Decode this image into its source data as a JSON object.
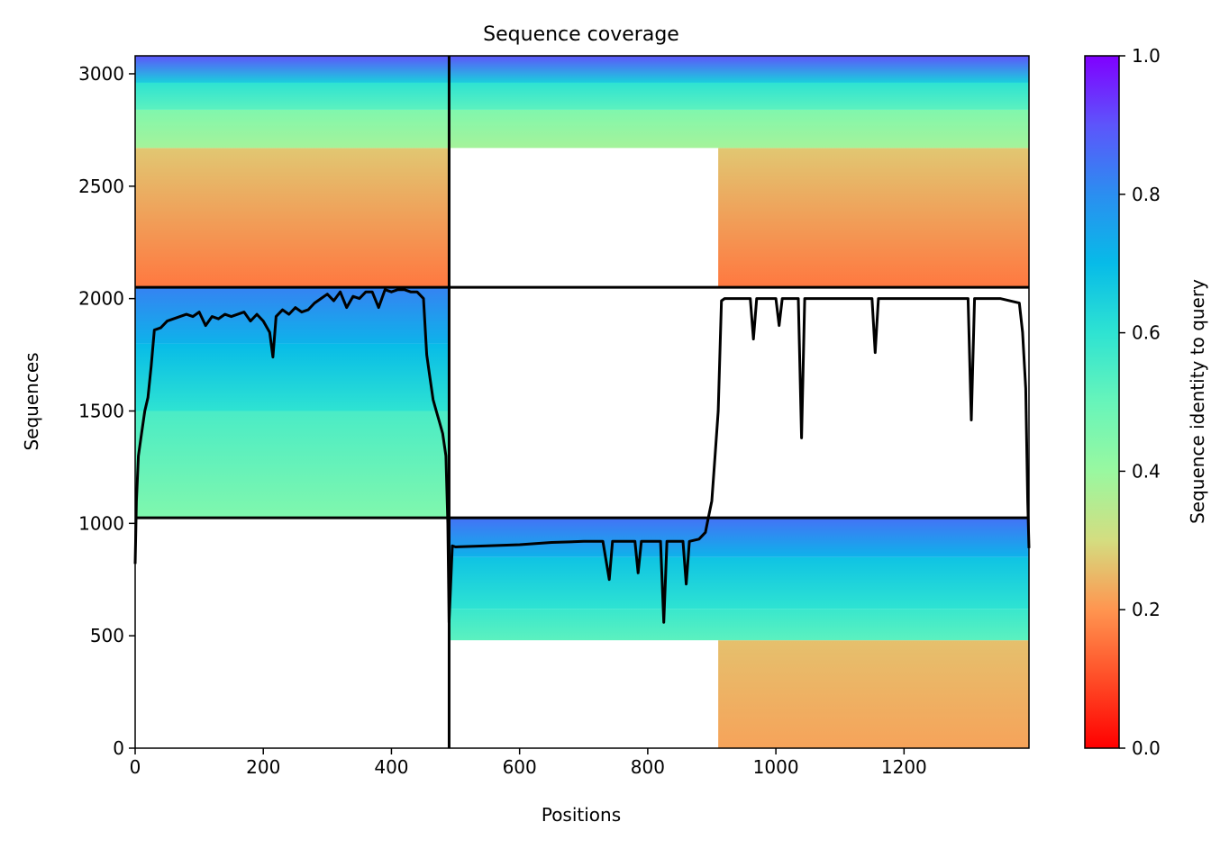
{
  "chart_data": {
    "type": "heatmap",
    "title": "Sequence coverage",
    "xlabel": "Positions",
    "ylabel": "Sequences",
    "xlim": [
      0,
      1395
    ],
    "ylim": [
      0,
      3080
    ],
    "x_ticks": [
      0,
      200,
      400,
      600,
      800,
      1000,
      1200
    ],
    "y_ticks": [
      0,
      500,
      1000,
      1500,
      2000,
      2500,
      3000
    ],
    "colorbar": {
      "label": "Sequence identity to query",
      "range": [
        0,
        1
      ],
      "ticks": [
        "0.0",
        "0.2",
        "0.4",
        "0.6",
        "0.8",
        "1.0"
      ],
      "colormap": "rainbow",
      "stops": [
        {
          "v": 0.0,
          "color": "#ff0000"
        },
        {
          "v": 0.1,
          "color": "#ff4d27"
        },
        {
          "v": 0.2,
          "color": "#ff9550"
        },
        {
          "v": 0.3,
          "color": "#d4dd80"
        },
        {
          "v": 0.4,
          "color": "#99f8a0"
        },
        {
          "v": 0.5,
          "color": "#67f5ba"
        },
        {
          "v": 0.6,
          "color": "#2ee3d2"
        },
        {
          "v": 0.7,
          "color": "#07bbe8"
        },
        {
          "v": 0.8,
          "color": "#2b8ef0"
        },
        {
          "v": 0.9,
          "color": "#5d55fb"
        },
        {
          "v": 1.0,
          "color": "#8000ff"
        }
      ]
    },
    "domain_boundaries_x": [
      490
    ],
    "group_boundaries_y": [
      1025,
      2050
    ],
    "blocks": [
      {
        "name": "group-top-left",
        "x": [
          0,
          490
        ],
        "y": [
          2050,
          3080
        ],
        "identity_bands": [
          {
            "y": [
              2050,
              2670
            ],
            "identity": [
              0.16,
              0.27
            ]
          },
          {
            "y": [
              2670,
              2840
            ],
            "identity": [
              0.38,
              0.45
            ]
          },
          {
            "y": [
              2840,
              2960
            ],
            "identity": [
              0.52,
              0.6
            ]
          },
          {
            "y": [
              2960,
              3080
            ],
            "identity": [
              0.65,
              0.9
            ]
          }
        ]
      },
      {
        "name": "group-top-right",
        "x": [
          490,
          1395
        ],
        "y": [
          2050,
          3080
        ],
        "identity_bands": [
          {
            "y": [
              2050,
              2670
            ],
            "identity": [
              0.16,
              0.27
            ],
            "x_start": 910
          },
          {
            "y": [
              2670,
              2840
            ],
            "identity": [
              0.38,
              0.45
            ]
          },
          {
            "y": [
              2840,
              2960
            ],
            "identity": [
              0.52,
              0.6
            ]
          },
          {
            "y": [
              2960,
              3080
            ],
            "identity": [
              0.65,
              0.9
            ]
          }
        ]
      },
      {
        "name": "group-middle-left",
        "x": [
          0,
          490
        ],
        "y": [
          1025,
          2050
        ],
        "identity_bands": [
          {
            "y": [
              1025,
              1500
            ],
            "identity": [
              0.45,
              0.55
            ]
          },
          {
            "y": [
              1500,
              1800
            ],
            "identity": [
              0.6,
              0.7
            ]
          },
          {
            "y": [
              1800,
              2050
            ],
            "identity": [
              0.72,
              0.82
            ]
          }
        ]
      },
      {
        "name": "group-bottom-right",
        "x": [
          490,
          1395
        ],
        "y": [
          0,
          1025
        ],
        "identity_bands": [
          {
            "y": [
              0,
              480
            ],
            "identity": [
              0.22,
              0.26
            ],
            "x_start": 910
          },
          {
            "y": [
              480,
              620
            ],
            "identity": [
              0.52,
              0.58
            ]
          },
          {
            "y": [
              620,
              850
            ],
            "identity": [
              0.6,
              0.68
            ]
          },
          {
            "y": [
              850,
              1025
            ],
            "identity": [
              0.72,
              0.85
            ]
          }
        ]
      }
    ],
    "coverage_line": {
      "x": [
        0,
        2,
        5,
        10,
        15,
        20,
        25,
        30,
        40,
        50,
        60,
        70,
        80,
        90,
        100,
        110,
        120,
        130,
        140,
        150,
        160,
        170,
        180,
        190,
        200,
        210,
        215,
        220,
        230,
        240,
        250,
        260,
        270,
        280,
        290,
        300,
        310,
        320,
        330,
        340,
        350,
        360,
        370,
        380,
        390,
        400,
        410,
        420,
        430,
        440,
        450,
        455,
        460,
        465,
        470,
        475,
        480,
        485,
        488,
        490,
        495,
        500,
        550,
        600,
        650,
        700,
        730,
        740,
        745,
        750,
        780,
        785,
        790,
        820,
        825,
        830,
        855,
        860,
        865,
        880,
        890,
        895,
        900,
        905,
        910,
        915,
        920,
        960,
        965,
        970,
        1000,
        1005,
        1010,
        1035,
        1040,
        1045,
        1050,
        1100,
        1150,
        1155,
        1160,
        1200,
        1250,
        1300,
        1305,
        1310,
        1350,
        1380,
        1385,
        1390,
        1393,
        1395
      ],
      "y": [
        820,
        1100,
        1300,
        1400,
        1500,
        1560,
        1700,
        1860,
        1870,
        1900,
        1910,
        1920,
        1930,
        1920,
        1940,
        1880,
        1920,
        1910,
        1930,
        1920,
        1930,
        1940,
        1900,
        1930,
        1900,
        1850,
        1740,
        1920,
        1950,
        1930,
        1960,
        1940,
        1950,
        1980,
        2000,
        2020,
        1990,
        2030,
        1960,
        2010,
        2000,
        2030,
        2030,
        1960,
        2040,
        2030,
        2040,
        2040,
        2030,
        2030,
        2000,
        1750,
        1650,
        1550,
        1500,
        1450,
        1400,
        1300,
        1000,
        560,
        900,
        895,
        900,
        905,
        915,
        920,
        920,
        750,
        920,
        920,
        920,
        780,
        920,
        920,
        560,
        920,
        920,
        730,
        920,
        930,
        960,
        1030,
        1100,
        1300,
        1500,
        1990,
        2000,
        2000,
        1820,
        2000,
        2000,
        1880,
        2000,
        2000,
        1380,
        2000,
        2000,
        2000,
        2000,
        1760,
        2000,
        2000,
        2000,
        2000,
        1460,
        2000,
        2000,
        1980,
        1850,
        1600,
        1100,
        890
      ]
    }
  }
}
